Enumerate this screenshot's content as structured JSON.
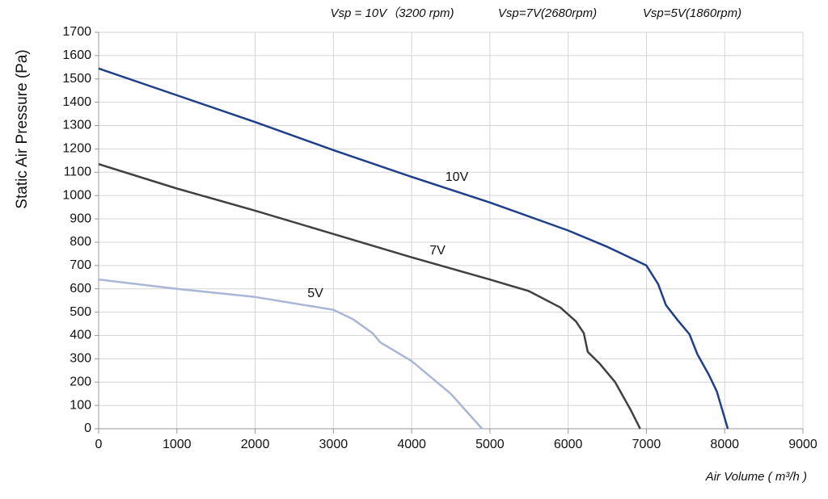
{
  "chart_data": {
    "type": "line",
    "subtitle": [
      "Vsp = 10V（3200 rpm)",
      "Vsp=7V(2680rpm)",
      "Vsp=5V(1860rpm)"
    ],
    "y_label": "Static Air Pressure  (Pa)",
    "x_label": "Air Volume ( m³/h )",
    "xlim": [
      0,
      9000
    ],
    "xticks": [
      0,
      1000,
      2000,
      3000,
      4000,
      5000,
      6000,
      7000,
      8000,
      9000
    ],
    "ylim": [
      0,
      1700
    ],
    "yticks": [
      0,
      100,
      200,
      300,
      400,
      500,
      600,
      700,
      800,
      900,
      1000,
      1100,
      1200,
      1300,
      1400,
      1500,
      1600,
      1700
    ],
    "grid": true,
    "series": [
      {
        "name": "10V",
        "color": "#1f3f8a",
        "x": [
          0,
          1000,
          2000,
          3000,
          4000,
          5000,
          6000,
          6500,
          7000,
          7150,
          7250,
          7400,
          7550,
          7650,
          7800,
          7900,
          8040
        ],
        "values": [
          1545,
          1430,
          1315,
          1195,
          1080,
          970,
          850,
          780,
          700,
          620,
          530,
          465,
          405,
          320,
          230,
          160,
          0
        ]
      },
      {
        "name": "7V",
        "color": "#404040",
        "x": [
          0,
          1000,
          2000,
          3000,
          4000,
          5000,
          5500,
          5900,
          6100,
          6200,
          6250,
          6400,
          6600,
          6800,
          6920
        ],
        "values": [
          1135,
          1030,
          935,
          835,
          735,
          640,
          590,
          520,
          460,
          410,
          330,
          280,
          200,
          80,
          0
        ]
      },
      {
        "name": "5V",
        "color": "#a9b6d6",
        "x": [
          0,
          1000,
          2000,
          3000,
          3250,
          3500,
          3600,
          4000,
          4500,
          4900
        ],
        "values": [
          640,
          600,
          565,
          510,
          470,
          410,
          370,
          290,
          150,
          0
        ]
      }
    ]
  }
}
